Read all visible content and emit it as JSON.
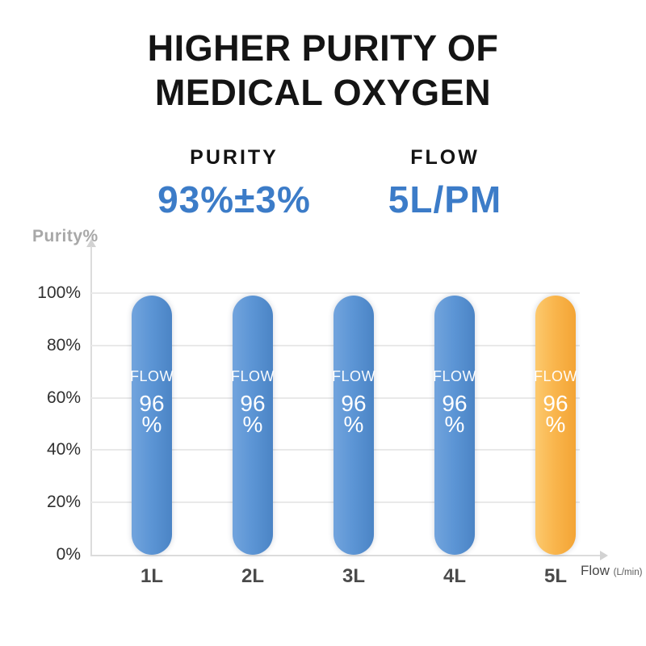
{
  "title": {
    "line1": "HIGHER PURITY OF",
    "line2": "MEDICAL OXYGEN"
  },
  "specs": [
    {
      "label": "PURITY",
      "value": "93%±3%"
    },
    {
      "label": "FLOW",
      "value": "5L/PM"
    }
  ],
  "chart_data": {
    "type": "bar",
    "title": "",
    "categories": [
      "1L",
      "2L",
      "3L",
      "4L",
      "5L"
    ],
    "values": [
      96,
      96,
      96,
      96,
      96
    ],
    "bar_inner_label": "FLOW",
    "unit": "%",
    "xlabel": "Flow",
    "xlabel_unit": "(L/min)",
    "ylabel": "Purity%",
    "y_ticks": [
      "100%",
      "80%",
      "60%",
      "40%",
      "20%",
      "0%"
    ],
    "ylim": [
      0,
      100
    ],
    "grid": true,
    "legend": "none",
    "bar_colors": [
      "#5C95D5",
      "#5C95D5",
      "#5C95D5",
      "#5C95D5",
      "#F9B54C"
    ],
    "highlight_index": 4,
    "drawn_top_pct": 99
  },
  "colors": {
    "accent_blue": "#3C7CC8",
    "bar_blue": "#5C95D5",
    "bar_orange": "#F9B54C",
    "axis_gray": "#DCDCDC",
    "grid_gray": "#E9E9E9",
    "title_text": "#141414",
    "ylabel_text": "#A8A8A8",
    "tick_text": "#303030",
    "xlabel_text": "#4A4A4A"
  }
}
